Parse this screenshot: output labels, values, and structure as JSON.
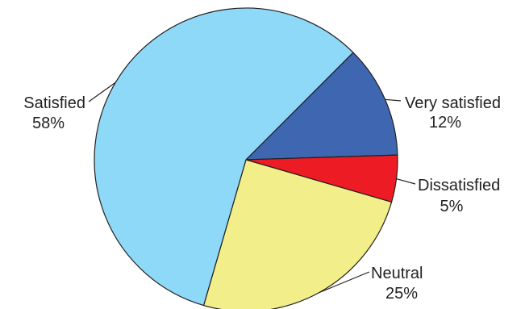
{
  "chart_data": {
    "type": "pie",
    "slices": [
      {
        "name": "Very satisfied",
        "value": 12,
        "value_label": "12%",
        "color": "#3f67b1"
      },
      {
        "name": "Dissatisfied",
        "value": 5,
        "value_label": "5%",
        "color": "#ed1c24"
      },
      {
        "name": "Neutral",
        "value": 25,
        "value_label": "25%",
        "color": "#f2ee8a"
      },
      {
        "name": "Satisfied",
        "value": 58,
        "value_label": "58%",
        "color": "#8ed8f8"
      }
    ],
    "outline_color": "#231f20"
  }
}
